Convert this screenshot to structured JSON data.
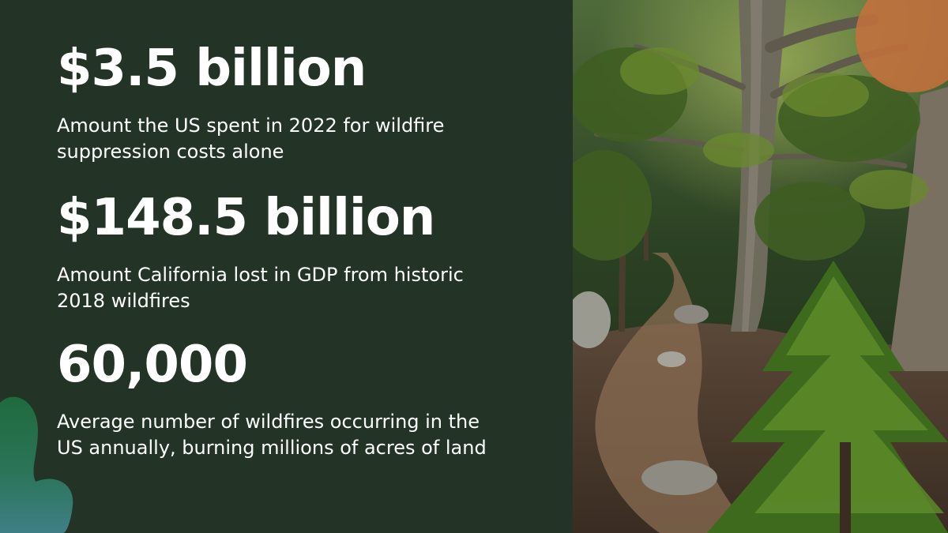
{
  "stats": [
    {
      "value": "$3.5 billion",
      "description": "Amount the US spent in 2022 for wildfire suppression costs alone"
    },
    {
      "value": "$148.5 billion",
      "description": "Amount California lost in GDP from historic 2018 wildfires"
    },
    {
      "value": "60,000",
      "description": "Average number of wildfires occurring in the US annually, burning millions of acres of land"
    }
  ],
  "colors": {
    "background": "#233427",
    "text": "#ffffff",
    "accent_orange": "#c4713e",
    "blob_green": "#1f6a3e",
    "blob_teal": "#3f7f86"
  },
  "images": {
    "photo": "forest-trail-photo",
    "decoration": "green-blob-shape"
  }
}
